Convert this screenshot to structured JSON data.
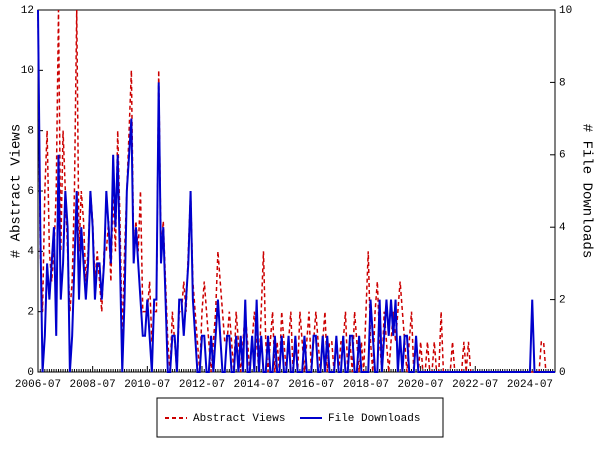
{
  "chart_data": {
    "type": "line",
    "x": [
      "2006-07",
      "2006-08",
      "2006-09",
      "2006-10",
      "2006-11",
      "2006-12",
      "2007-01",
      "2007-02",
      "2007-03",
      "2007-04",
      "2007-05",
      "2007-06",
      "2007-07",
      "2007-08",
      "2007-09",
      "2007-10",
      "2007-11",
      "2007-12",
      "2008-01",
      "2008-02",
      "2008-03",
      "2008-04",
      "2008-05",
      "2008-06",
      "2008-07",
      "2008-08",
      "2008-09",
      "2008-10",
      "2008-11",
      "2008-12",
      "2009-01",
      "2009-02",
      "2009-03",
      "2009-04",
      "2009-05",
      "2009-06",
      "2009-07",
      "2009-08",
      "2009-09",
      "2009-10",
      "2009-11",
      "2009-12",
      "2010-01",
      "2010-02",
      "2010-03",
      "2010-04",
      "2010-05",
      "2010-06",
      "2010-07",
      "2010-08",
      "2010-09",
      "2010-10",
      "2010-11",
      "2010-12",
      "2011-01",
      "2011-02",
      "2011-03",
      "2011-04",
      "2011-05",
      "2011-06",
      "2011-07",
      "2011-08",
      "2011-09",
      "2011-10",
      "2011-11",
      "2011-12",
      "2012-01",
      "2012-02",
      "2012-03",
      "2012-04",
      "2012-05",
      "2012-06",
      "2012-07",
      "2012-08",
      "2012-09",
      "2012-10",
      "2012-11",
      "2012-12",
      "2013-01",
      "2013-02",
      "2013-03",
      "2013-04",
      "2013-05",
      "2013-06",
      "2013-07",
      "2013-08",
      "2013-09",
      "2013-10",
      "2013-11",
      "2013-12",
      "2014-01",
      "2014-02",
      "2014-03",
      "2014-04",
      "2014-05",
      "2014-06",
      "2014-07",
      "2014-08",
      "2014-09",
      "2014-10",
      "2014-11",
      "2014-12",
      "2015-01",
      "2015-02",
      "2015-03",
      "2015-04",
      "2015-05",
      "2015-06",
      "2015-07",
      "2015-08",
      "2015-09",
      "2015-10",
      "2015-11",
      "2015-12",
      "2016-01",
      "2016-02",
      "2016-03",
      "2016-04",
      "2016-05",
      "2016-06",
      "2016-07",
      "2016-08",
      "2016-09",
      "2016-10",
      "2016-11",
      "2016-12",
      "2017-01",
      "2017-02",
      "2017-03",
      "2017-04",
      "2017-05",
      "2017-06",
      "2017-07",
      "2017-08",
      "2017-09",
      "2017-10",
      "2017-11",
      "2017-12",
      "2018-01",
      "2018-02",
      "2018-03",
      "2018-04",
      "2018-05",
      "2018-06",
      "2018-07",
      "2018-08",
      "2018-09",
      "2018-10",
      "2018-11",
      "2018-12",
      "2019-01",
      "2019-02",
      "2019-03",
      "2019-04",
      "2019-05",
      "2019-06",
      "2019-07",
      "2019-08",
      "2019-09",
      "2019-10",
      "2019-11",
      "2019-12",
      "2020-01",
      "2020-02",
      "2020-03",
      "2020-04",
      "2020-05",
      "2020-06",
      "2020-07",
      "2020-08",
      "2020-09",
      "2020-10",
      "2020-11",
      "2020-12",
      "2021-01",
      "2021-02",
      "2021-03",
      "2021-04",
      "2021-05",
      "2021-06",
      "2021-07",
      "2021-08",
      "2021-09",
      "2021-10",
      "2021-11",
      "2021-12",
      "2022-01",
      "2022-02",
      "2022-03",
      "2022-04",
      "2022-05",
      "2022-06",
      "2022-07",
      "2022-08",
      "2022-09",
      "2022-10",
      "2022-11",
      "2022-12",
      "2023-01",
      "2023-02",
      "2023-03",
      "2023-04",
      "2023-05",
      "2023-06",
      "2023-07",
      "2023-08",
      "2023-09",
      "2023-10",
      "2023-11",
      "2023-12",
      "2024-01",
      "2024-02",
      "2024-03",
      "2024-04",
      "2024-05",
      "2024-06",
      "2024-07",
      "2024-08",
      "2024-09",
      "2024-10",
      "2024-11",
      "2024-12",
      "2025-01",
      "2025-02",
      "2025-03",
      "2025-04",
      "2025-05",
      "2025-06"
    ],
    "series": [
      {
        "name": "Abstract Views",
        "color": "#cc0000",
        "dash": true,
        "axis": "y",
        "values": [
          12,
          4,
          2,
          6,
          8,
          4,
          3,
          4,
          6,
          12,
          4,
          8,
          6,
          4,
          2,
          3,
          6,
          12,
          4,
          6,
          5,
          3,
          4,
          6,
          5,
          3,
          4,
          3,
          2,
          4,
          4,
          5,
          3,
          6,
          4,
          8,
          5,
          1,
          4,
          6,
          8,
          10,
          4,
          5,
          4,
          6,
          2,
          2,
          2,
          3,
          1,
          2,
          2,
          10,
          4,
          5,
          3,
          1,
          0,
          2,
          1,
          0,
          2,
          2,
          3,
          2,
          4,
          6,
          3,
          2,
          1,
          0,
          2,
          3,
          2,
          1,
          0,
          1,
          2,
          4,
          3,
          2,
          1,
          1,
          2,
          1,
          0,
          2,
          1,
          0,
          1,
          2,
          1,
          0,
          1,
          2,
          1,
          0,
          2,
          4,
          1,
          0,
          1,
          2,
          0,
          1,
          0,
          2,
          1,
          0,
          1,
          2,
          0,
          1,
          0,
          2,
          1,
          0,
          1,
          2,
          0,
          1,
          2,
          1,
          0,
          1,
          2,
          0,
          1,
          1,
          0,
          1,
          0,
          1,
          1,
          2,
          0,
          1,
          0,
          2,
          1,
          0,
          1,
          0,
          2,
          4,
          1,
          0,
          2,
          3,
          1,
          0,
          2,
          1,
          0,
          1,
          2,
          1,
          2,
          3,
          2,
          1,
          0,
          1,
          2,
          0,
          1,
          0,
          1,
          0,
          0,
          1,
          0,
          0,
          1,
          0,
          0,
          2,
          0,
          0,
          0,
          0,
          1,
          0,
          0,
          0,
          0,
          1,
          0,
          1,
          0,
          0,
          0,
          0,
          0,
          0,
          0,
          0,
          0,
          0,
          0,
          0,
          0,
          0,
          0,
          0,
          0,
          0,
          0,
          0,
          0,
          0,
          0,
          0,
          0,
          0,
          0,
          0,
          0,
          0,
          0,
          1,
          1,
          0,
          0,
          0,
          0,
          0
        ]
      },
      {
        "name": "File Downloads",
        "color": "#0000cc",
        "dash": false,
        "axis": "y2",
        "values": [
          10,
          4,
          0,
          1,
          3,
          2,
          3,
          4,
          1,
          6,
          2,
          3,
          5,
          4,
          0,
          1,
          3,
          5,
          2,
          4,
          3,
          2,
          3,
          5,
          4,
          2,
          3,
          3,
          2,
          3,
          5,
          4,
          3,
          6,
          4,
          6,
          3,
          0,
          2,
          5,
          6,
          7,
          3,
          4,
          3,
          2,
          1,
          1,
          2,
          1,
          0,
          2,
          2,
          8,
          3,
          4,
          2,
          0,
          0,
          1,
          1,
          0,
          2,
          2,
          1,
          2,
          3,
          5,
          2,
          1,
          0,
          0,
          1,
          1,
          0,
          0,
          1,
          0,
          1,
          2,
          1,
          0,
          0,
          1,
          1,
          0,
          0,
          1,
          0,
          1,
          0,
          2,
          0,
          0,
          1,
          0,
          2,
          0,
          1,
          0,
          0,
          1,
          0,
          0,
          1,
          0,
          0,
          1,
          0,
          0,
          1,
          0,
          0,
          1,
          0,
          0,
          0,
          1,
          0,
          0,
          0,
          1,
          1,
          0,
          0,
          1,
          0,
          1,
          0,
          0,
          0,
          1,
          0,
          0,
          1,
          0,
          0,
          1,
          1,
          0,
          0,
          1,
          0,
          0,
          0,
          0,
          2,
          1,
          0,
          0,
          2,
          0,
          1,
          2,
          1,
          2,
          1,
          2,
          0,
          1,
          0,
          1,
          1,
          0,
          0,
          0,
          1,
          0,
          0,
          0,
          0,
          0,
          0,
          0,
          0,
          0,
          0,
          0,
          0,
          0,
          0,
          0,
          0,
          0,
          0,
          0,
          0,
          0,
          0,
          0,
          0,
          0,
          0,
          0,
          0,
          0,
          0,
          0,
          0,
          0,
          0,
          0,
          0,
          0,
          0,
          0,
          0,
          0,
          0,
          0,
          0,
          0,
          0,
          0,
          0,
          0,
          0,
          2,
          0,
          0,
          0,
          0,
          0,
          0,
          0,
          0,
          0,
          0
        ]
      }
    ],
    "ylabel": "# Abstract Views",
    "y2label": "# File Downloads",
    "ylim": [
      0,
      12
    ],
    "yticks": [
      0,
      2,
      4,
      6,
      8,
      10,
      12
    ],
    "y2lim": [
      0,
      10
    ],
    "y2ticks": [
      0,
      2,
      4,
      6,
      8,
      10
    ]
  }
}
